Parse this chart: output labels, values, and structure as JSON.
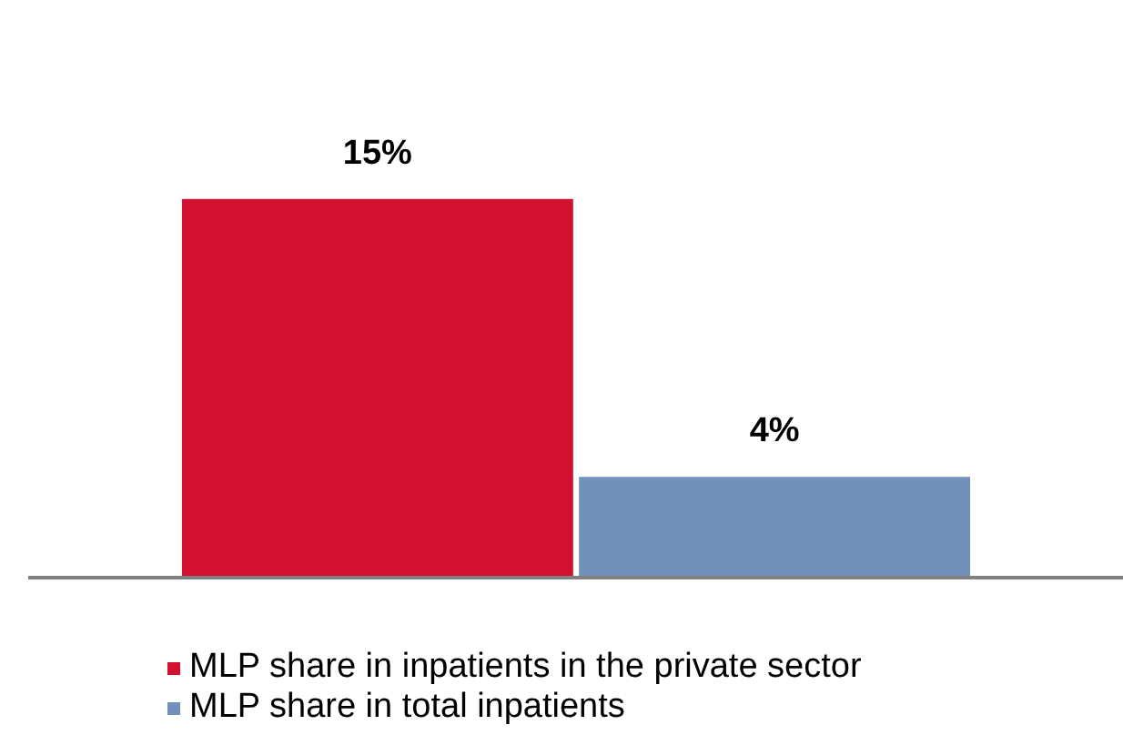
{
  "chart_data": {
    "type": "bar",
    "categories": [
      null
    ],
    "legend": "bottom",
    "series": [
      {
        "name": "MLP share in inpatients in the private sector",
        "color": "#d21030",
        "values": [
          15
        ],
        "value_labels": [
          "15%"
        ]
      },
      {
        "name": "MLP share in total inpatients",
        "color": "#7190bc",
        "values": [
          4
        ],
        "value_labels": [
          "4%"
        ]
      }
    ]
  }
}
